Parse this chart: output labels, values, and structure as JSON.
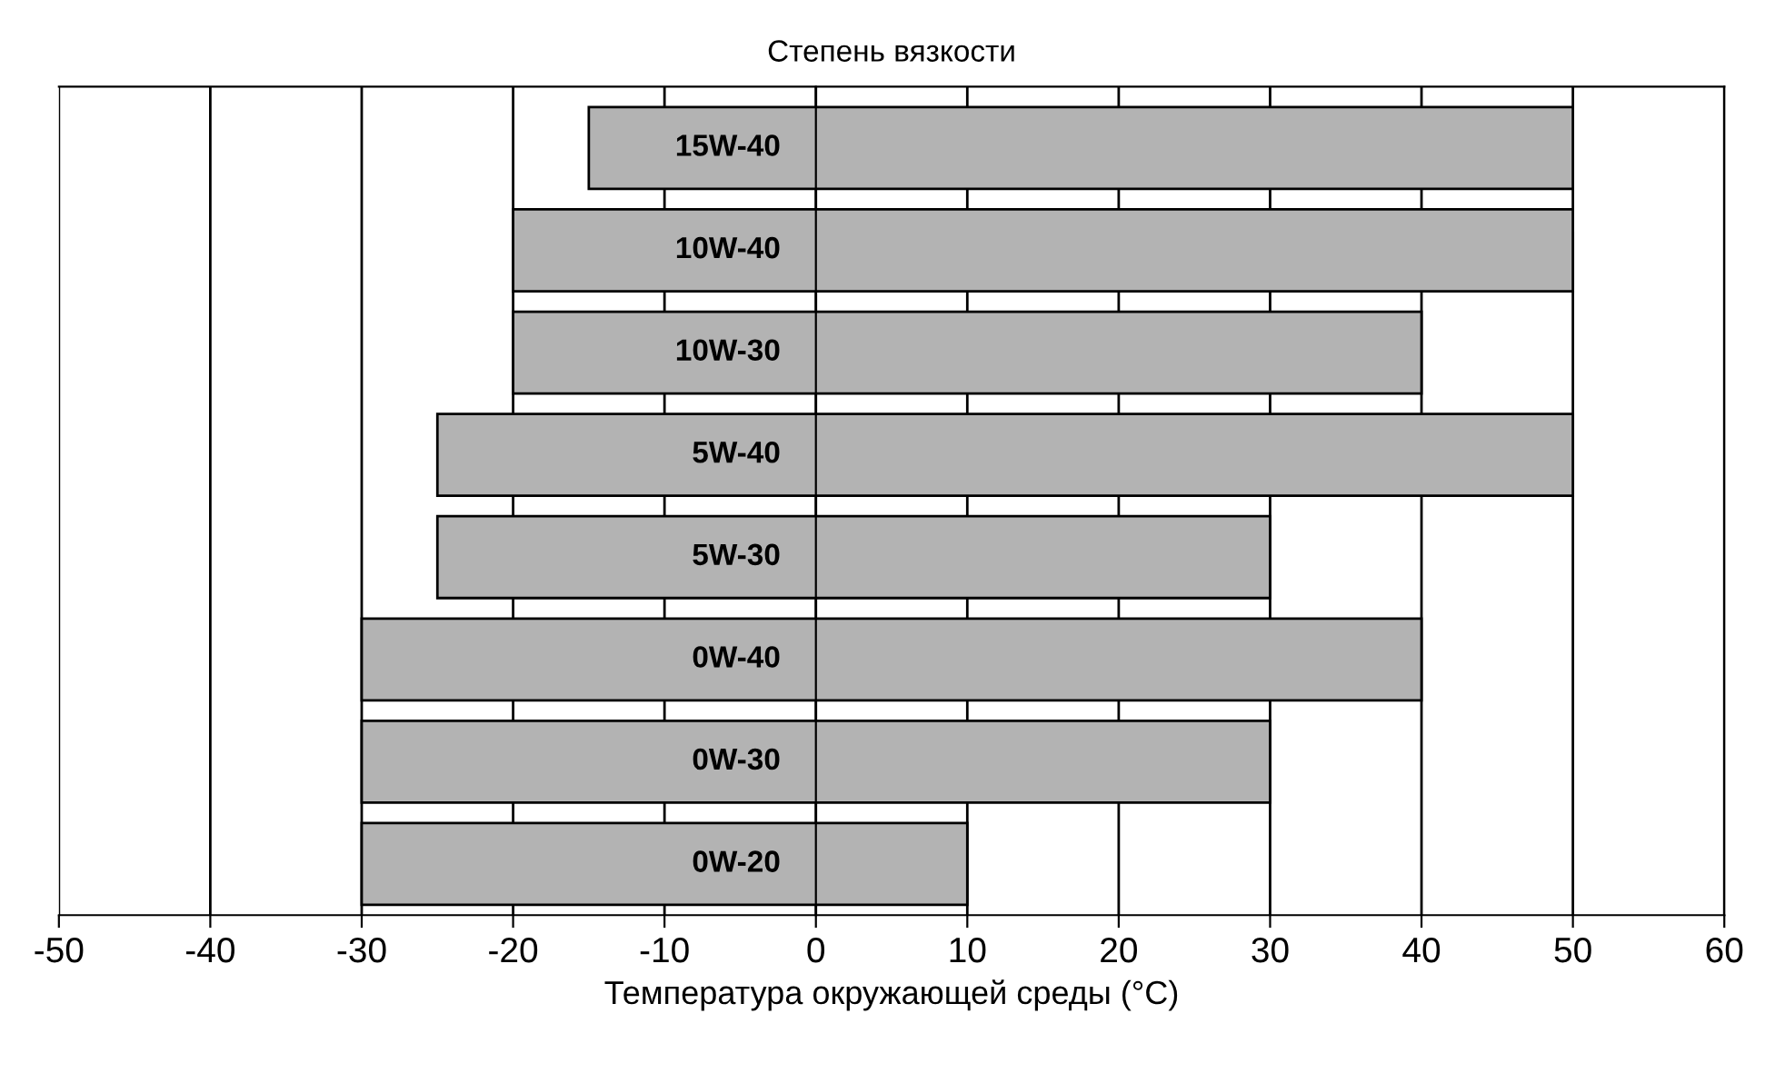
{
  "chart_data": {
    "type": "bar",
    "orientation": "horizontal",
    "title": "Степень вязкости",
    "xlabel": "Температура окружающей среды (°C)",
    "categories": [
      "15W-40",
      "10W-40",
      "10W-30",
      "5W-40",
      "5W-30",
      "0W-40",
      "0W-30",
      "0W-20"
    ],
    "base": [
      -15,
      -20,
      -20,
      -25,
      -25,
      -30,
      -30,
      -30
    ],
    "values": [
      65,
      70,
      60,
      75,
      55,
      70,
      60,
      40
    ],
    "color": "#b3b3b3",
    "xlim": [
      -50,
      60
    ],
    "xticks": [
      -50,
      -40,
      -30,
      -20,
      -10,
      0,
      10,
      20,
      30,
      40,
      50,
      60
    ],
    "grid": "x"
  }
}
